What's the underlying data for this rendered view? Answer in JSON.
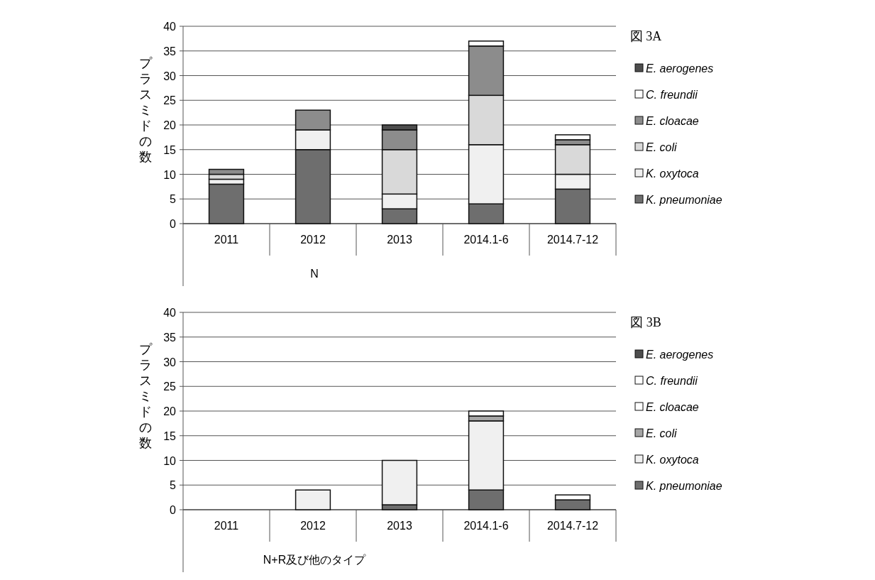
{
  "chart_data": [
    {
      "type": "bar",
      "stacked": true,
      "annotations": [
        "図 3A"
      ],
      "ylabel": "プラスミドの数",
      "xlabel": "N",
      "categories": [
        "2011",
        "2012",
        "2013",
        "2014.1-6",
        "2014.7-12"
      ],
      "ylim": [
        0,
        40
      ],
      "yticks": [
        0,
        5,
        10,
        15,
        20,
        25,
        30,
        35,
        40
      ],
      "grid": "y",
      "legend": "right",
      "series": [
        {
          "name": "K. pneumoniae",
          "color": "#6e6e6e",
          "values": [
            8,
            15,
            3,
            4,
            7
          ]
        },
        {
          "name": "K. oxytoca",
          "color": "#f0f0f0",
          "values": [
            1,
            4,
            3,
            12,
            3
          ]
        },
        {
          "name": "E. coli",
          "color": "#d9d9d9",
          "values": [
            1,
            0,
            9,
            10,
            6
          ]
        },
        {
          "name": "E. cloacae",
          "color": "#8c8c8c",
          "values": [
            1,
            4,
            4,
            10,
            1
          ]
        },
        {
          "name": "C. freundii",
          "color": "#ffffff",
          "values": [
            0,
            0,
            0,
            1,
            1
          ]
        },
        {
          "name": "E. aerogenes",
          "color": "#4d4d4d",
          "values": [
            0,
            0,
            1,
            0,
            0
          ]
        }
      ]
    },
    {
      "type": "bar",
      "stacked": true,
      "annotations": [
        "図 3B"
      ],
      "ylabel": "プラスミドの数",
      "xlabel": "N+R及び他のタイプ",
      "categories": [
        "2011",
        "2012",
        "2013",
        "2014.1-6",
        "2014.7-12"
      ],
      "ylim": [
        0,
        40
      ],
      "yticks": [
        0,
        5,
        10,
        15,
        20,
        25,
        30,
        35,
        40
      ],
      "grid": "y",
      "legend": "right",
      "series": [
        {
          "name": "K. pneumoniae",
          "color": "#6e6e6e",
          "values": [
            0,
            0,
            1,
            4,
            2
          ]
        },
        {
          "name": "K. oxytoca",
          "color": "#f0f0f0",
          "values": [
            0,
            4,
            9,
            14,
            0
          ]
        },
        {
          "name": "E. coli",
          "color": "#a6a6a6",
          "values": [
            0,
            0,
            0,
            1,
            0
          ]
        },
        {
          "name": "E. cloacae",
          "color": "#ffffff",
          "values": [
            0,
            0,
            0,
            0,
            0
          ]
        },
        {
          "name": "C. freundii",
          "color": "#ffffff",
          "values": [
            0,
            0,
            0,
            1,
            1
          ]
        },
        {
          "name": "E. aerogenes",
          "color": "#4d4d4d",
          "values": [
            0,
            0,
            0,
            0,
            0
          ]
        }
      ]
    }
  ]
}
